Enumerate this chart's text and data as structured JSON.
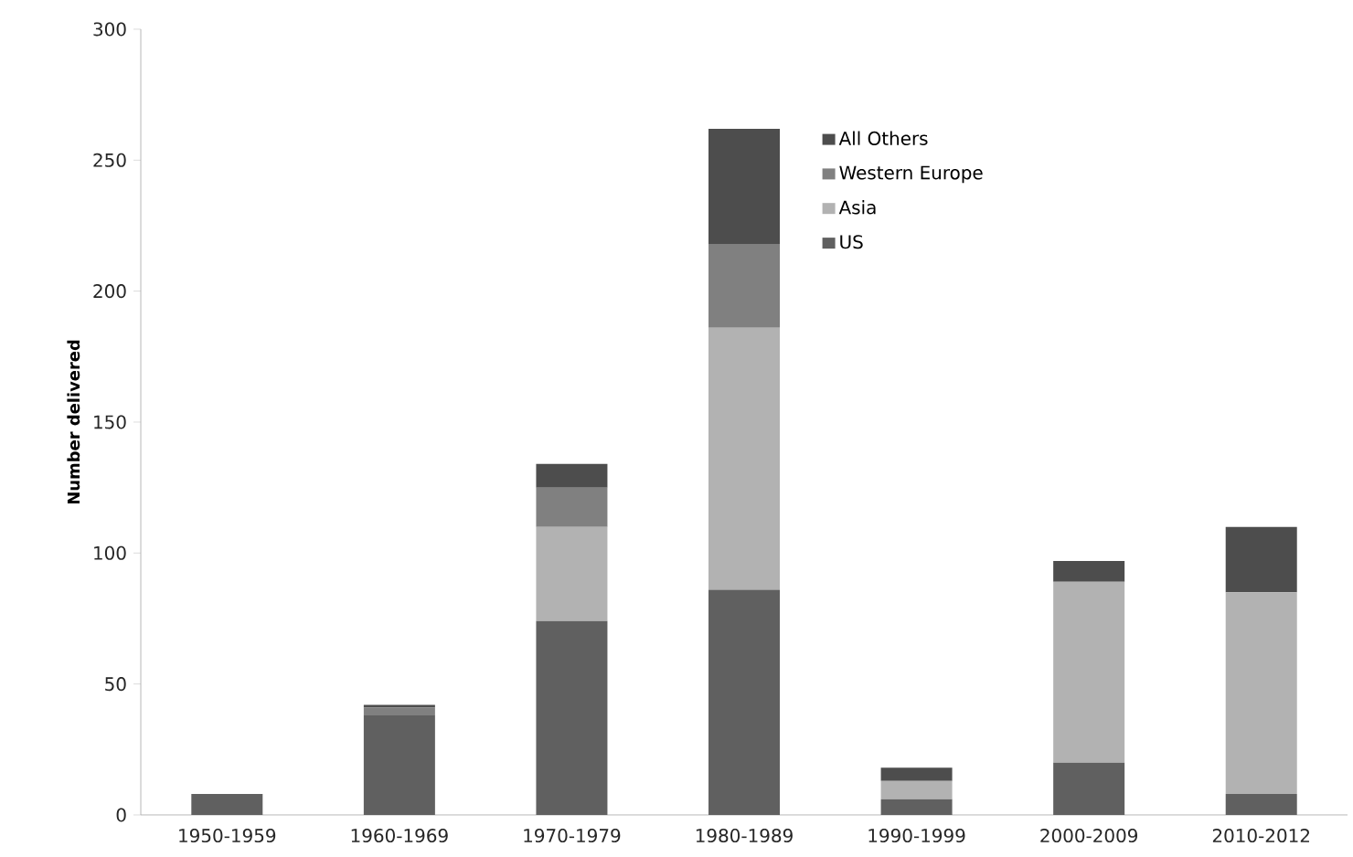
{
  "chart_data": {
    "type": "bar",
    "stacked": true,
    "ylabel": "Number delivered",
    "categories": [
      "1950-1959",
      "1960-1969",
      "1970-1979",
      "1980-1989",
      "1990-1999",
      "2000-2009",
      "2010-2012"
    ],
    "series": [
      {
        "name": "US",
        "color": "#606060",
        "values": [
          8,
          38,
          74,
          86,
          6,
          20,
          8
        ]
      },
      {
        "name": "Asia",
        "color": "#b2b2b2",
        "values": [
          0,
          0,
          36,
          100,
          7,
          69,
          77
        ]
      },
      {
        "name": "Western Europe",
        "color": "#808080",
        "values": [
          0,
          3,
          15,
          32,
          0,
          0,
          0
        ]
      },
      {
        "name": "All Others",
        "color": "#4d4d4d",
        "values": [
          0,
          1,
          9,
          44,
          5,
          8,
          25
        ]
      }
    ],
    "ylim": [
      0,
      300
    ],
    "yticks": [
      0,
      50,
      100,
      150,
      200,
      250,
      300
    ],
    "grid": false,
    "legend": "top right"
  }
}
